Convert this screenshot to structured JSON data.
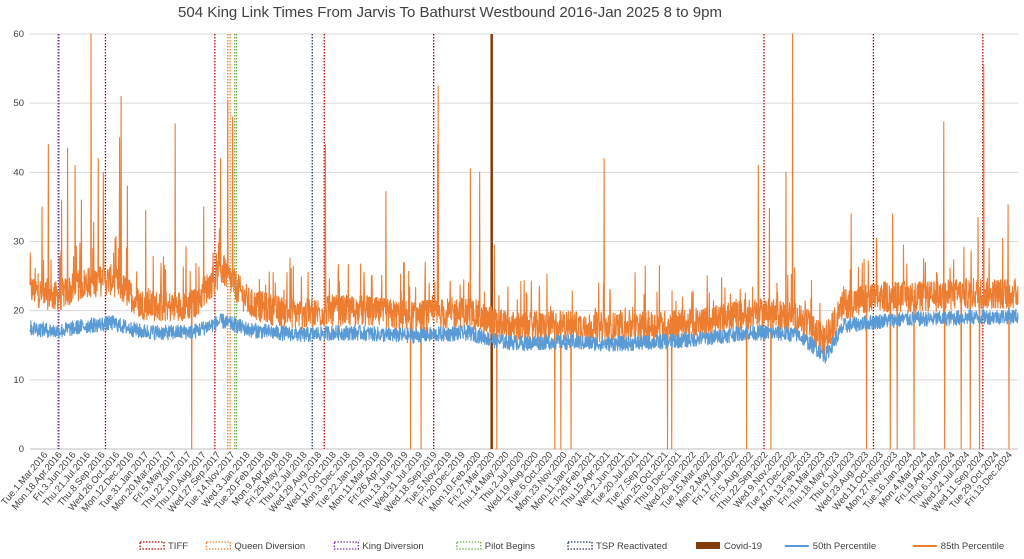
{
  "chart_data": {
    "type": "line",
    "title": "504 King Link Times From Jarvis To Bathurst Westbound 2016-Jan 2025 8 to 9pm",
    "xlabel": "",
    "ylabel": "",
    "ylim": [
      0,
      60
    ],
    "y_ticks": [
      0,
      10,
      20,
      30,
      40,
      50,
      60
    ],
    "x_range": [
      "2016-01-01",
      "2024-12-31"
    ],
    "grid": "horizontal",
    "legend_position": "bottom",
    "x_tick_labels": [
      {
        "date": "2016-03-01",
        "label": "Tue.1.Mar.2016"
      },
      {
        "date": "2016-04-18",
        "label": "Mon.18.Apr.2016"
      },
      {
        "date": "2016-06-03",
        "label": "Fri.3.Jun.2016"
      },
      {
        "date": "2016-07-21",
        "label": "Thu.21.Jul.2016"
      },
      {
        "date": "2016-09-08",
        "label": "Thu.8.Sep.2016"
      },
      {
        "date": "2016-10-26",
        "label": "Wed.26.Oct.2016"
      },
      {
        "date": "2016-12-12",
        "label": "Mon.12.Dec.2016"
      },
      {
        "date": "2017-01-31",
        "label": "Tue.31.Jan.2017"
      },
      {
        "date": "2017-03-20",
        "label": "Mon.20.Mar.2017"
      },
      {
        "date": "2017-05-05",
        "label": "Fri.5.May.2017"
      },
      {
        "date": "2017-06-22",
        "label": "Thu.22.Jun.2017"
      },
      {
        "date": "2017-08-10",
        "label": "Thu.10.Aug.2017"
      },
      {
        "date": "2017-09-27",
        "label": "Wed.27.Sep.2017"
      },
      {
        "date": "2017-11-14",
        "label": "Tue.14.Nov.2017"
      },
      {
        "date": "2018-01-03",
        "label": "Wed.3.Jan.2018"
      },
      {
        "date": "2018-02-20",
        "label": "Tue.20.Feb.2018"
      },
      {
        "date": "2018-04-09",
        "label": "Mon.9.Apr.2018"
      },
      {
        "date": "2018-05-25",
        "label": "Fri.25.May.2018"
      },
      {
        "date": "2018-07-12",
        "label": "Thu.12.Jul.2018"
      },
      {
        "date": "2018-08-29",
        "label": "Wed.29.Aug.2018"
      },
      {
        "date": "2018-10-17",
        "label": "Wed.17.Oct.2018"
      },
      {
        "date": "2018-12-03",
        "label": "Mon.3.Dec.2018"
      },
      {
        "date": "2019-01-22",
        "label": "Tue.22.Jan.2019"
      },
      {
        "date": "2019-03-11",
        "label": "Mon.11.Mar.2019"
      },
      {
        "date": "2019-04-26",
        "label": "Fri.26.Apr.2019"
      },
      {
        "date": "2019-06-13",
        "label": "Thu.13.Jun.2019"
      },
      {
        "date": "2019-07-31",
        "label": "Wed.31.Jul.2019"
      },
      {
        "date": "2019-09-18",
        "label": "Wed.18.Sep.2019"
      },
      {
        "date": "2019-11-05",
        "label": "Tue.5.Nov.2019"
      },
      {
        "date": "2019-12-20",
        "label": "Fri.20.Dec.2019"
      },
      {
        "date": "2020-02-10",
        "label": "Mon.10.Feb.2020"
      },
      {
        "date": "2020-03-27",
        "label": "Fri.27.Mar.2020"
      },
      {
        "date": "2020-05-14",
        "label": "Thu.14.May.2020"
      },
      {
        "date": "2020-07-02",
        "label": "Thu.2.Jul.2020"
      },
      {
        "date": "2020-08-19",
        "label": "Wed.19.Aug.2020"
      },
      {
        "date": "2020-10-06",
        "label": "Tue.6.Oct.2020"
      },
      {
        "date": "2020-11-23",
        "label": "Mon.23.Nov.2020"
      },
      {
        "date": "2021-01-11",
        "label": "Mon.11.Jan.2021"
      },
      {
        "date": "2021-02-26",
        "label": "Fri.26.Feb.2021"
      },
      {
        "date": "2021-04-15",
        "label": "Thu.15.Apr.2021"
      },
      {
        "date": "2021-06-02",
        "label": "Wed.2.Jun.2021"
      },
      {
        "date": "2021-07-20",
        "label": "Tue.20.Jul.2021"
      },
      {
        "date": "2021-09-07",
        "label": "Tue.7.Sep.2021"
      },
      {
        "date": "2021-10-25",
        "label": "Mon.25.Oct.2021"
      },
      {
        "date": "2021-12-09",
        "label": "Thu.9.Dec.2021"
      },
      {
        "date": "2022-01-26",
        "label": "Wed.26.Jan.2022"
      },
      {
        "date": "2022-03-15",
        "label": "Tue.15.Mar.2022"
      },
      {
        "date": "2022-05-02",
        "label": "Mon.2.May.2022"
      },
      {
        "date": "2022-06-17",
        "label": "Fri.17.Jun.2022"
      },
      {
        "date": "2022-08-05",
        "label": "Fri.5.Aug.2022"
      },
      {
        "date": "2022-09-22",
        "label": "Thu.22.Sep.2022"
      },
      {
        "date": "2022-11-09",
        "label": "Wed.9.Nov.2022"
      },
      {
        "date": "2022-12-27",
        "label": "Tue.27.Dec.2022"
      },
      {
        "date": "2023-02-13",
        "label": "Mon.13.Feb.2023"
      },
      {
        "date": "2023-03-31",
        "label": "Fri.31.Mar.2023"
      },
      {
        "date": "2023-05-18",
        "label": "Thu.18.May.2023"
      },
      {
        "date": "2023-07-06",
        "label": "Thu.6.Jul.2023"
      },
      {
        "date": "2023-08-23",
        "label": "Wed.23.Aug.2023"
      },
      {
        "date": "2023-10-11",
        "label": "Wed.11.Oct.2023"
      },
      {
        "date": "2023-11-27",
        "label": "Mon.27.Nov.2023"
      },
      {
        "date": "2024-01-16",
        "label": "Tue.16.Jan.2024"
      },
      {
        "date": "2024-03-04",
        "label": "Mon.4.Mar.2024"
      },
      {
        "date": "2024-04-19",
        "label": "Fri.19.Apr.2024"
      },
      {
        "date": "2024-06-06",
        "label": "Thu.6.Jun.2024"
      },
      {
        "date": "2024-07-24",
        "label": "Wed.24.Jul.2024"
      },
      {
        "date": "2024-09-11",
        "label": "Wed.11.Sep.2024"
      },
      {
        "date": "2024-10-29",
        "label": "Tue.29.Oct.2024"
      },
      {
        "date": "2024-12-13",
        "label": "Fri.13.Dec.2024"
      }
    ],
    "series": [
      {
        "name": "50th Percentile",
        "color": "#5b9bd5",
        "points": [
          [
            "2016-01-01",
            17.5
          ],
          [
            "2016-04-01",
            17.0
          ],
          [
            "2016-07-01",
            17.8
          ],
          [
            "2016-10-01",
            18.2
          ],
          [
            "2017-01-01",
            17.0
          ],
          [
            "2017-04-01",
            16.8
          ],
          [
            "2017-07-01",
            17.0
          ],
          [
            "2017-10-01",
            18.5
          ],
          [
            "2018-01-01",
            17.2
          ],
          [
            "2018-04-01",
            16.8
          ],
          [
            "2018-07-01",
            16.5
          ],
          [
            "2018-10-01",
            16.8
          ],
          [
            "2019-01-01",
            16.8
          ],
          [
            "2019-04-01",
            16.5
          ],
          [
            "2019-07-01",
            16.4
          ],
          [
            "2019-10-01",
            16.6
          ],
          [
            "2020-01-01",
            16.8
          ],
          [
            "2020-04-01",
            15.6
          ],
          [
            "2020-07-01",
            15.3
          ],
          [
            "2020-10-01",
            15.5
          ],
          [
            "2021-01-01",
            15.4
          ],
          [
            "2021-04-01",
            15.2
          ],
          [
            "2021-07-01",
            15.3
          ],
          [
            "2021-10-01",
            15.5
          ],
          [
            "2022-01-01",
            15.8
          ],
          [
            "2022-04-01",
            16.2
          ],
          [
            "2022-07-01",
            16.8
          ],
          [
            "2022-10-01",
            16.8
          ],
          [
            "2023-01-01",
            16.5
          ],
          [
            "2023-03-31",
            13.5
          ],
          [
            "2023-06-01",
            17.8
          ],
          [
            "2023-10-01",
            18.5
          ],
          [
            "2024-01-01",
            18.8
          ],
          [
            "2024-04-01",
            18.8
          ],
          [
            "2024-07-01",
            19.0
          ],
          [
            "2024-12-31",
            19.2
          ]
        ]
      },
      {
        "name": "85th Percentile",
        "color": "#ed7d31",
        "points": [
          [
            "2016-01-01",
            23.0
          ],
          [
            "2016-04-01",
            22.0
          ],
          [
            "2016-07-01",
            24.0
          ],
          [
            "2016-10-01",
            24.5
          ],
          [
            "2017-01-01",
            21.0
          ],
          [
            "2017-04-01",
            20.5
          ],
          [
            "2017-07-01",
            21.0
          ],
          [
            "2017-10-01",
            26.0
          ],
          [
            "2018-01-01",
            21.0
          ],
          [
            "2018-04-01",
            20.0
          ],
          [
            "2018-07-01",
            19.5
          ],
          [
            "2018-10-01",
            20.0
          ],
          [
            "2019-01-01",
            20.0
          ],
          [
            "2019-04-01",
            19.5
          ],
          [
            "2019-07-01",
            19.2
          ],
          [
            "2019-10-01",
            19.5
          ],
          [
            "2020-01-01",
            19.8
          ],
          [
            "2020-04-01",
            18.0
          ],
          [
            "2020-07-01",
            17.5
          ],
          [
            "2020-10-01",
            17.8
          ],
          [
            "2021-01-01",
            17.8
          ],
          [
            "2021-04-01",
            17.5
          ],
          [
            "2021-07-01",
            17.6
          ],
          [
            "2021-10-01",
            17.8
          ],
          [
            "2022-01-01",
            18.0
          ],
          [
            "2022-04-01",
            18.5
          ],
          [
            "2022-07-01",
            19.5
          ],
          [
            "2022-10-01",
            19.5
          ],
          [
            "2023-01-01",
            19.0
          ],
          [
            "2023-03-31",
            15.5
          ],
          [
            "2023-06-01",
            21.0
          ],
          [
            "2023-10-01",
            22.0
          ],
          [
            "2024-01-01",
            22.0
          ],
          [
            "2024-04-01",
            22.0
          ],
          [
            "2024-07-01",
            22.5
          ],
          [
            "2024-12-31",
            22.5
          ]
        ],
        "spikes_up": [
          [
            "2016-02-10",
            35
          ],
          [
            "2016-03-02",
            44
          ],
          [
            "2016-04-15",
            36
          ],
          [
            "2016-05-05",
            43.5
          ],
          [
            "2016-05-30",
            41
          ],
          [
            "2016-06-20",
            36
          ],
          [
            "2016-07-22",
            60
          ],
          [
            "2016-08-15",
            42
          ],
          [
            "2016-09-01",
            40
          ],
          [
            "2016-10-25",
            45
          ],
          [
            "2016-10-30",
            51
          ],
          [
            "2016-11-20",
            38
          ],
          [
            "2017-01-20",
            34.5
          ],
          [
            "2017-04-28",
            47
          ],
          [
            "2017-08-01",
            35
          ],
          [
            "2017-09-26",
            42
          ],
          [
            "2017-10-20",
            50.5
          ],
          [
            "2017-11-05",
            48
          ],
          [
            "2018-03-20",
            25.5
          ],
          [
            "2018-05-05",
            25.5
          ],
          [
            "2018-09-10",
            44
          ],
          [
            "2019-03-30",
            37.2
          ],
          [
            "2019-09-18",
            44
          ],
          [
            "2019-09-20",
            52.5
          ],
          [
            "2020-01-05",
            40.5
          ],
          [
            "2020-02-05",
            40
          ],
          [
            "2020-03-25",
            29.5
          ],
          [
            "2021-03-25",
            42
          ],
          [
            "2021-09-25",
            26.5
          ],
          [
            "2022-08-20",
            41
          ],
          [
            "2022-09-26",
            34.8
          ],
          [
            "2022-12-12",
            60
          ],
          [
            "2022-11-20",
            40
          ],
          [
            "2023-06-25",
            34
          ],
          [
            "2023-11-10",
            34
          ],
          [
            "2024-04-28",
            47.3
          ],
          [
            "2024-08-20",
            33.5
          ],
          [
            "2024-09-08",
            55.5
          ],
          [
            "2024-11-28",
            35.3
          ]
        ],
        "spikes_down": [
          "2017-06-22",
          "2019-06-20",
          "2019-07-25",
          "2020-04-02",
          "2020-10-12",
          "2020-11-01",
          "2020-12-05",
          "2021-10-22",
          "2021-11-05",
          "2022-07-12",
          "2022-10-01",
          "2023-08-15",
          "2023-11-02",
          "2023-11-25",
          "2024-01-20",
          "2024-05-01",
          "2024-06-25",
          "2024-07-25",
          "2024-08-25",
          "2024-12-01"
        ]
      }
    ],
    "markers": [
      {
        "name": "TIFF",
        "color": "#c00000",
        "style": "dotted",
        "dates": [
          "2016-09-08",
          "2017-09-07",
          "2018-09-06",
          "2019-09-05",
          "2022-09-08",
          "2023-09-07",
          "2024-09-05"
        ]
      },
      {
        "name": "Queen Diversion",
        "color": "#ed7d31",
        "style": "dotted",
        "dates": [
          "2017-10-20",
          "2017-10-28"
        ]
      },
      {
        "name": "King Diversion",
        "color": "#7030a0",
        "style": "dotted",
        "dates": [
          "2016-04-04",
          "2016-04-06"
        ]
      },
      {
        "name": "Pilot Begins",
        "color": "#70ad47",
        "style": "dotted",
        "dates": [
          "2017-11-12",
          "2017-11-18"
        ]
      },
      {
        "name": "TSP Reactivated",
        "color": "#203864",
        "style": "dotted",
        "dates": [
          "2018-07-28"
        ]
      },
      {
        "name": "Covid-19",
        "color": "#843c0c",
        "style": "solid",
        "dates": [
          "2020-03-16"
        ]
      }
    ]
  }
}
